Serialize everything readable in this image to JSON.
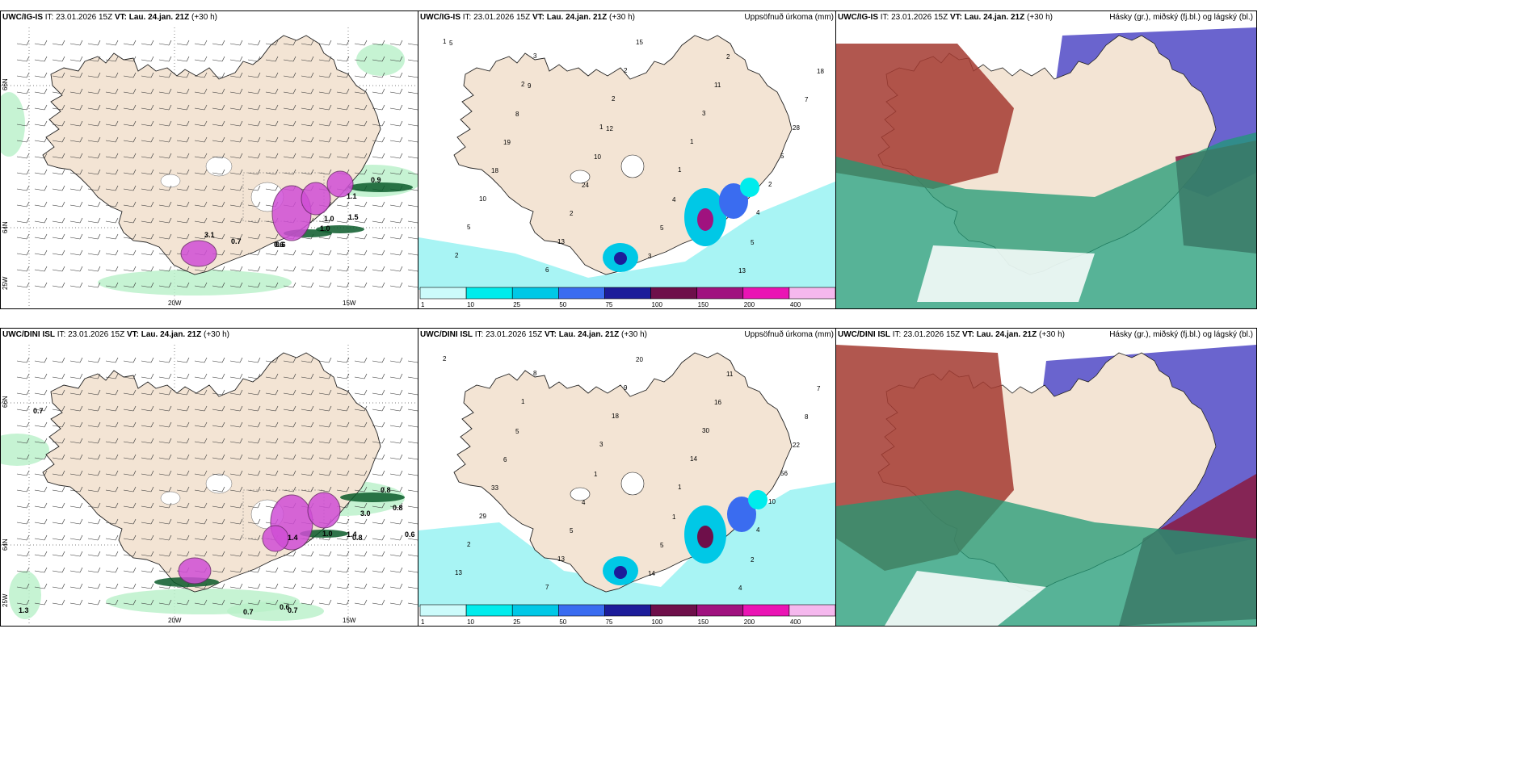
{
  "panels": {
    "p1": {
      "model": "UWC/IG-IS",
      "it": "IT: 23.01.2026 15Z",
      "vt_label": "VT:",
      "vt": "Lau. 24.jan. 21Z",
      "lead": "(+30 h)",
      "right": "",
      "lon_ticks": [
        "20W",
        "15W"
      ],
      "lat_ticks": [
        "66N",
        "64N",
        "25W"
      ],
      "values": [
        "0.9",
        "0.6",
        "1.0",
        "1.0",
        "1.1",
        "1.5",
        "0.6",
        "0.7",
        "3.1"
      ]
    },
    "p2": {
      "model": "UWC/IG-IS",
      "it": "IT: 23.01.2026 15Z",
      "vt_label": "VT:",
      "vt": "Lau. 24.jan. 21Z",
      "lead": "(+30 h)",
      "right": "Uppsöfnuð úrkoma (mm)",
      "values": [
        "1",
        "2",
        "1",
        "1",
        "4",
        "2",
        "3",
        "2",
        "1",
        "2",
        "5",
        "6",
        "2",
        "3",
        "5",
        "10",
        "13",
        "15",
        "11",
        "28",
        "18",
        "2",
        "3",
        "2",
        "7",
        "19",
        "24",
        "5",
        "13",
        "18",
        "8",
        "10",
        "4",
        "5",
        "5",
        "9",
        "12"
      ]
    },
    "p3": {
      "model": "UWC/IG-IS",
      "it": "IT: 23.01.2026 15Z",
      "vt_label": "VT:",
      "vt": "Lau. 24.jan. 21Z",
      "lead": "(+30 h)",
      "right": "Hásky (gr.), miðský (fj.bl.) og lágský (bl.)"
    },
    "p4": {
      "model": "UWC/DINI ISL",
      "it": "IT: 23.01.2026 15Z",
      "vt_label": "VT:",
      "vt": "Lau. 24.jan. 21Z",
      "lead": "(+30 h)",
      "right": "",
      "lon_ticks": [
        "20W",
        "15W"
      ],
      "lat_ticks": [
        "66N",
        "64N",
        "25W"
      ],
      "values": [
        "0.7",
        "0.8",
        "0.8",
        "1.0",
        "0.6",
        "3.0",
        "0.8",
        "1.4",
        "0.7",
        "0.6",
        "0.7",
        "1.3",
        "1.4"
      ]
    },
    "p5": {
      "model": "UWC/DINI ISL",
      "it": "IT: 23.01.2026 15Z",
      "vt_label": "VT:",
      "vt": "Lau. 24.jan. 21Z",
      "lead": "(+30 h)",
      "right": "Uppsöfnuð úrkoma (mm)",
      "values": [
        "2",
        "1",
        "3",
        "1",
        "4",
        "13",
        "8",
        "18",
        "14",
        "10",
        "2",
        "7",
        "9",
        "30",
        "56",
        "29",
        "13",
        "20",
        "16",
        "22",
        "33",
        "5",
        "14",
        "11",
        "8",
        "6",
        "4",
        "5",
        "4",
        "7",
        "5",
        "1",
        "1",
        "2"
      ]
    },
    "p6": {
      "model": "UWC/DINI ISL",
      "it": "IT: 23.01.2026 15Z",
      "vt_label": "VT:",
      "vt": "Lau. 24.jan. 21Z",
      "lead": "(+30 h)",
      "right": "Hásky (gr.), miðský (fj.bl.) og lágský (bl.)"
    }
  },
  "legend": {
    "ticks": [
      "1",
      "10",
      "25",
      "50",
      "75",
      "100",
      "150",
      "200",
      "400"
    ],
    "colors": [
      "#ccfbfb",
      "#00ecec",
      "#00c8e6",
      "#3a6cf0",
      "#1c1c9a",
      "#6e0f4a",
      "#a0127f",
      "#ea14b4",
      "#f5b8ee"
    ]
  },
  "colors": {
    "land": "#f3e4d4",
    "precip_light": "#a8f4f4",
    "green": "#3cc47a",
    "darkgreen": "#0a5a2a",
    "purple": "#d04ed6",
    "cloud_high": "#a33a30",
    "cloud_mid": "#5a53c9",
    "cloud_low": "#1f9a74"
  }
}
